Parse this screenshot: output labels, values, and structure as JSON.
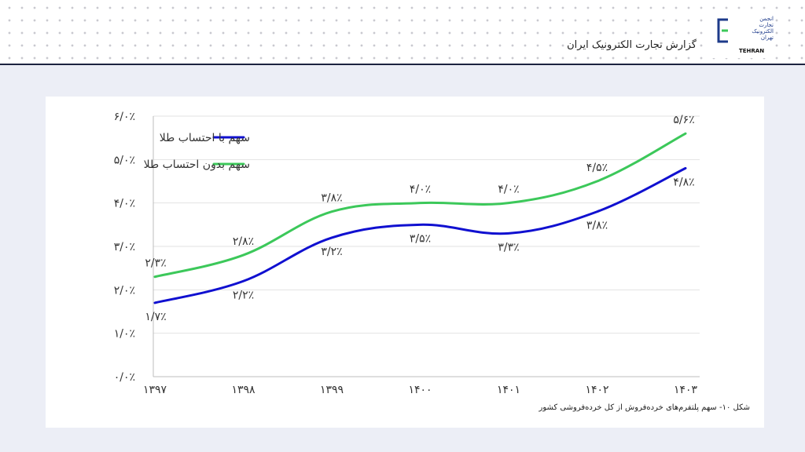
{
  "header": {
    "report_title": "گزارش تجارت الکترونیک ایران",
    "logo": {
      "text_lines": [
        "انجمن",
        "تجارت",
        "الکترونیک",
        "تهران"
      ],
      "sub": "TEHRAN",
      "color": "#1d3a8a"
    }
  },
  "caption": "شکل ۱۰- سهم پلتفرم‌های خرده‌فروش از کل خرده‌فروشی کشور",
  "chart_data": {
    "type": "line",
    "categories": [
      "۱۳۹۷",
      "۱۳۹۸",
      "۱۳۹۹",
      "۱۴۰۰",
      "۱۴۰۱",
      "۱۴۰۲",
      "۱۴۰۳"
    ],
    "series": [
      {
        "name": "سهم با احتساب طلا",
        "color": "#1010d0",
        "values": [
          1.7,
          2.2,
          3.2,
          3.5,
          3.3,
          3.8,
          4.8
        ],
        "labels": [
          "۱/۷٪",
          "۲/۲٪",
          "۳/۲٪",
          "۳/۵٪",
          "۳/۳٪",
          "۳/۸٪",
          "۴/۸٪"
        ]
      },
      {
        "name": "سهم بدون احتساب طلا",
        "color": "#3cc85a",
        "values": [
          2.3,
          2.8,
          3.8,
          4.0,
          4.0,
          4.5,
          5.6
        ],
        "labels": [
          "۲/۳٪",
          "۲/۸٪",
          "۳/۸٪",
          "۴/۰٪",
          "۴/۰٪",
          "۴/۵٪",
          "۵/۶٪"
        ]
      }
    ],
    "ylim": [
      0,
      6
    ],
    "yticks": [
      0,
      1,
      2,
      3,
      4,
      5,
      6
    ],
    "ytick_labels": [
      "۰/۰٪",
      "۱/۰٪",
      "۲/۰٪",
      "۳/۰٪",
      "۴/۰٪",
      "۵/۰٪",
      "۶/۰٪"
    ],
    "grid": true,
    "legend": "top-left"
  }
}
